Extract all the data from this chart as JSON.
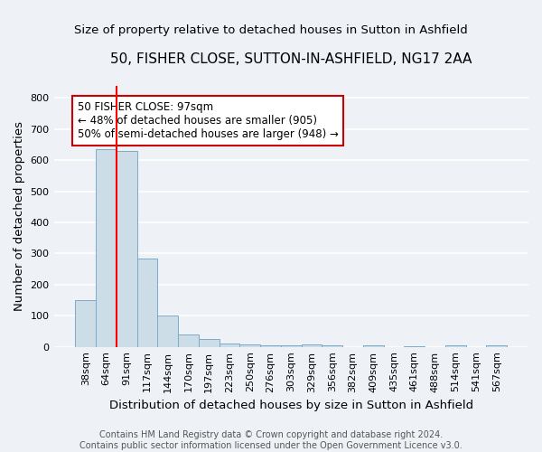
{
  "title": "50, FISHER CLOSE, SUTTON-IN-ASHFIELD, NG17 2AA",
  "subtitle": "Size of property relative to detached houses in Sutton in Ashfield",
  "xlabel": "Distribution of detached houses by size in Sutton in Ashfield",
  "ylabel": "Number of detached properties",
  "footer1": "Contains HM Land Registry data © Crown copyright and database right 2024.",
  "footer2": "Contains public sector information licensed under the Open Government Licence v3.0.",
  "categories": [
    "38sqm",
    "64sqm",
    "91sqm",
    "117sqm",
    "144sqm",
    "170sqm",
    "197sqm",
    "223sqm",
    "250sqm",
    "276sqm",
    "303sqm",
    "329sqm",
    "356sqm",
    "382sqm",
    "409sqm",
    "435sqm",
    "461sqm",
    "488sqm",
    "514sqm",
    "541sqm",
    "567sqm"
  ],
  "values": [
    150,
    635,
    630,
    285,
    100,
    40,
    25,
    10,
    8,
    6,
    5,
    8,
    5,
    0,
    5,
    0,
    3,
    0,
    6,
    0,
    4
  ],
  "bar_color": "#ccdde8",
  "bar_edge_color": "#7baac8",
  "red_line_x": 1.5,
  "annotation_text": "50 FISHER CLOSE: 97sqm\n← 48% of detached houses are smaller (905)\n50% of semi-detached houses are larger (948) →",
  "annotation_box_color": "white",
  "annotation_box_edge_color": "#cc0000",
  "ylim": [
    0,
    840
  ],
  "yticks": [
    0,
    100,
    200,
    300,
    400,
    500,
    600,
    700,
    800
  ],
  "background_color": "#eef2f7",
  "grid_color": "white",
  "title_fontsize": 11,
  "subtitle_fontsize": 9.5,
  "axis_label_fontsize": 9.5,
  "tick_fontsize": 8,
  "footer_fontsize": 7,
  "annotation_fontsize": 8.5
}
